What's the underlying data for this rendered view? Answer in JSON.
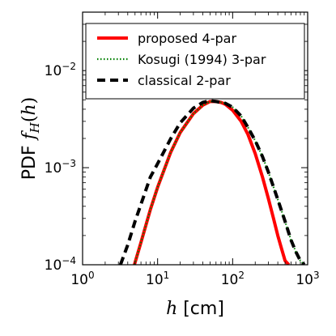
{
  "chart_data": {
    "type": "line",
    "xlabel": "h [cm]",
    "ylabel": "PDF f_H(h)",
    "xscale": "log",
    "yscale": "log",
    "xlim": [
      1,
      1000
    ],
    "ylim": [
      0.0001,
      0.04
    ],
    "x_ticks": [
      1,
      10,
      100,
      1000
    ],
    "x_tick_labels": [
      "10^0",
      "10^1",
      "10^2",
      "10^3"
    ],
    "y_ticks": [
      0.0001,
      0.001,
      0.01
    ],
    "y_tick_labels": [
      "10^-4",
      "10^-3",
      "10^-2"
    ],
    "grid": false,
    "legend": {
      "position": "top-right",
      "frame": true
    },
    "series": [
      {
        "name": "proposed 4-par",
        "color": "#ff0000",
        "style": "solid",
        "x": [
          4.9,
          6,
          8,
          10,
          15,
          20,
          30,
          40,
          50,
          60,
          70,
          80,
          100,
          130,
          160,
          200,
          250,
          300,
          350,
          400,
          450,
          500,
          560
        ],
        "y": [
          0.0001,
          0.00017,
          0.00037,
          0.00063,
          0.00145,
          0.0023,
          0.0036,
          0.0044,
          0.0048,
          0.0048,
          0.0047,
          0.0045,
          0.0039,
          0.003,
          0.0022,
          0.0014,
          0.0008,
          0.00048,
          0.0003,
          0.0002,
          0.000145,
          0.00011,
          0.0001
        ]
      },
      {
        "name": "Kosugi (1994) 3-par",
        "color": "#008000",
        "style": "dotted",
        "x": [
          4.9,
          6,
          8,
          10,
          15,
          20,
          30,
          40,
          50,
          60,
          70,
          80,
          100,
          130,
          160,
          200,
          250,
          300,
          400,
          500,
          600,
          700,
          800,
          900
        ],
        "y": [
          0.0001,
          0.00017,
          0.00037,
          0.00063,
          0.00145,
          0.0023,
          0.0036,
          0.0044,
          0.0048,
          0.0048,
          0.0047,
          0.0046,
          0.0042,
          0.0034,
          0.0026,
          0.0019,
          0.0013,
          0.0009,
          0.00047,
          0.00028,
          0.00018,
          0.000135,
          0.00011,
          0.0001
        ]
      },
      {
        "name": "classical 2-par",
        "color": "#000000",
        "style": "dashed",
        "x": [
          3.2,
          4,
          5,
          6,
          8,
          10,
          15,
          20,
          30,
          40,
          50,
          60,
          70,
          80,
          100,
          130,
          160,
          200,
          250,
          300,
          400,
          500,
          600,
          700,
          800,
          900
        ],
        "y": [
          0.0001,
          0.00016,
          0.00028,
          0.00042,
          0.0008,
          0.0011,
          0.002,
          0.0029,
          0.0041,
          0.0047,
          0.0049,
          0.0048,
          0.0047,
          0.0046,
          0.0042,
          0.0034,
          0.0026,
          0.0019,
          0.0013,
          0.0009,
          0.00047,
          0.00028,
          0.00018,
          0.000135,
          0.00011,
          0.0001
        ]
      }
    ]
  }
}
